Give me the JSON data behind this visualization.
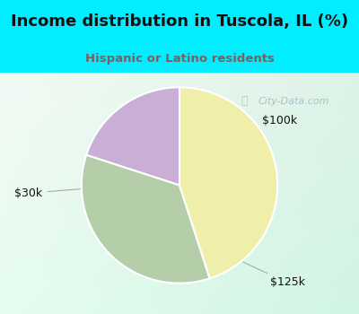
{
  "title": "Income distribution in Tuscola, IL (%)",
  "subtitle": "Hispanic or Latino residents",
  "slices": [
    {
      "label": "$100k",
      "value": 20,
      "color": "#c9aed6"
    },
    {
      "label": "$125k",
      "value": 35,
      "color": "#b5ceaa"
    },
    {
      "label": "$30k",
      "value": 45,
      "color": "#efefaa"
    }
  ],
  "startangle": 90,
  "bg_cyan": "#00eeff",
  "title_color": "#111111",
  "subtitle_color": "#7a6060",
  "watermark": "City-Data.com",
  "watermark_color": "#a0b8c8",
  "label_100k": "$100k",
  "label_125k": "$125k",
  "label_30k": "$30k",
  "label_color": "#111111",
  "arrow_color": "#aaaaaa"
}
